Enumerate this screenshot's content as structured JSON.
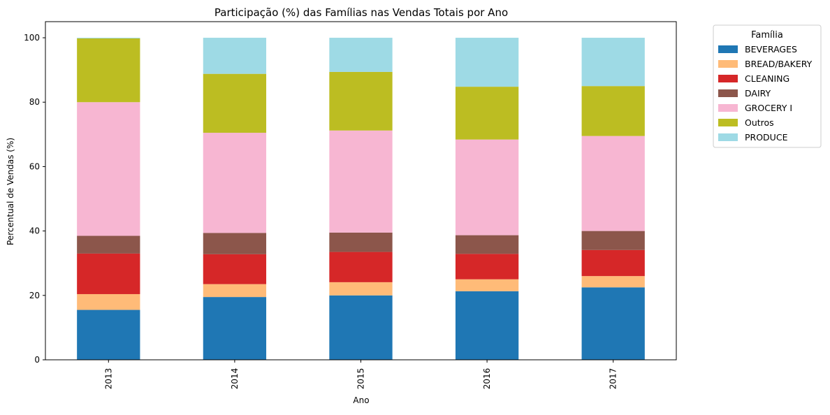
{
  "chart_data": {
    "type": "bar",
    "stacked": true,
    "title": "Participação (%) das Famílias nas Vendas Totais por Ano",
    "xlabel": "Ano",
    "ylabel": "Percentual de Vendas (%)",
    "ylim": [
      0,
      105
    ],
    "yticks": [
      0,
      20,
      40,
      60,
      80,
      100
    ],
    "grid": false,
    "legend": {
      "title": "Família",
      "placement": "outside-top-right"
    },
    "categories": [
      "2013",
      "2014",
      "2015",
      "2016",
      "2017"
    ],
    "series": [
      {
        "name": "BEVERAGES",
        "color": "#1f77b4",
        "values": [
          15.5,
          19.5,
          20.0,
          21.3,
          22.5
        ]
      },
      {
        "name": "BREAD/BAKERY",
        "color": "#ffbb78",
        "values": [
          4.9,
          4.0,
          4.1,
          3.7,
          3.5
        ]
      },
      {
        "name": "CLEANING",
        "color": "#d62728",
        "values": [
          12.6,
          9.3,
          9.4,
          7.9,
          8.1
        ]
      },
      {
        "name": "DAIRY",
        "color": "#8c564b",
        "values": [
          5.5,
          6.6,
          6.0,
          5.8,
          5.9
        ]
      },
      {
        "name": "GROCERY I",
        "color": "#f7b6d2",
        "values": [
          41.5,
          31.1,
          31.7,
          29.7,
          29.5
        ]
      },
      {
        "name": "Outros",
        "color": "#bcbd22",
        "values": [
          19.8,
          18.3,
          18.2,
          16.4,
          15.5
        ]
      },
      {
        "name": "PRODUCE",
        "color": "#9edae5",
        "values": [
          0.2,
          11.2,
          10.6,
          15.2,
          15.0
        ]
      }
    ]
  }
}
